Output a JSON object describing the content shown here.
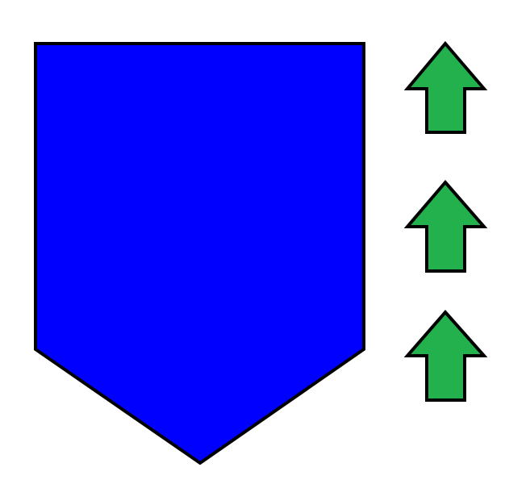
{
  "colors": {
    "background": "#ffffff",
    "shield_fill": "#0000ff",
    "arrow_fill": "#22b14c",
    "stroke": "#000000"
  },
  "shapes": {
    "shield": {
      "icon": "shield-pentagon"
    },
    "arrows": [
      {
        "icon": "up-arrow-icon",
        "direction": "up"
      },
      {
        "icon": "up-arrow-icon",
        "direction": "up"
      },
      {
        "icon": "up-arrow-icon",
        "direction": "up"
      }
    ]
  }
}
